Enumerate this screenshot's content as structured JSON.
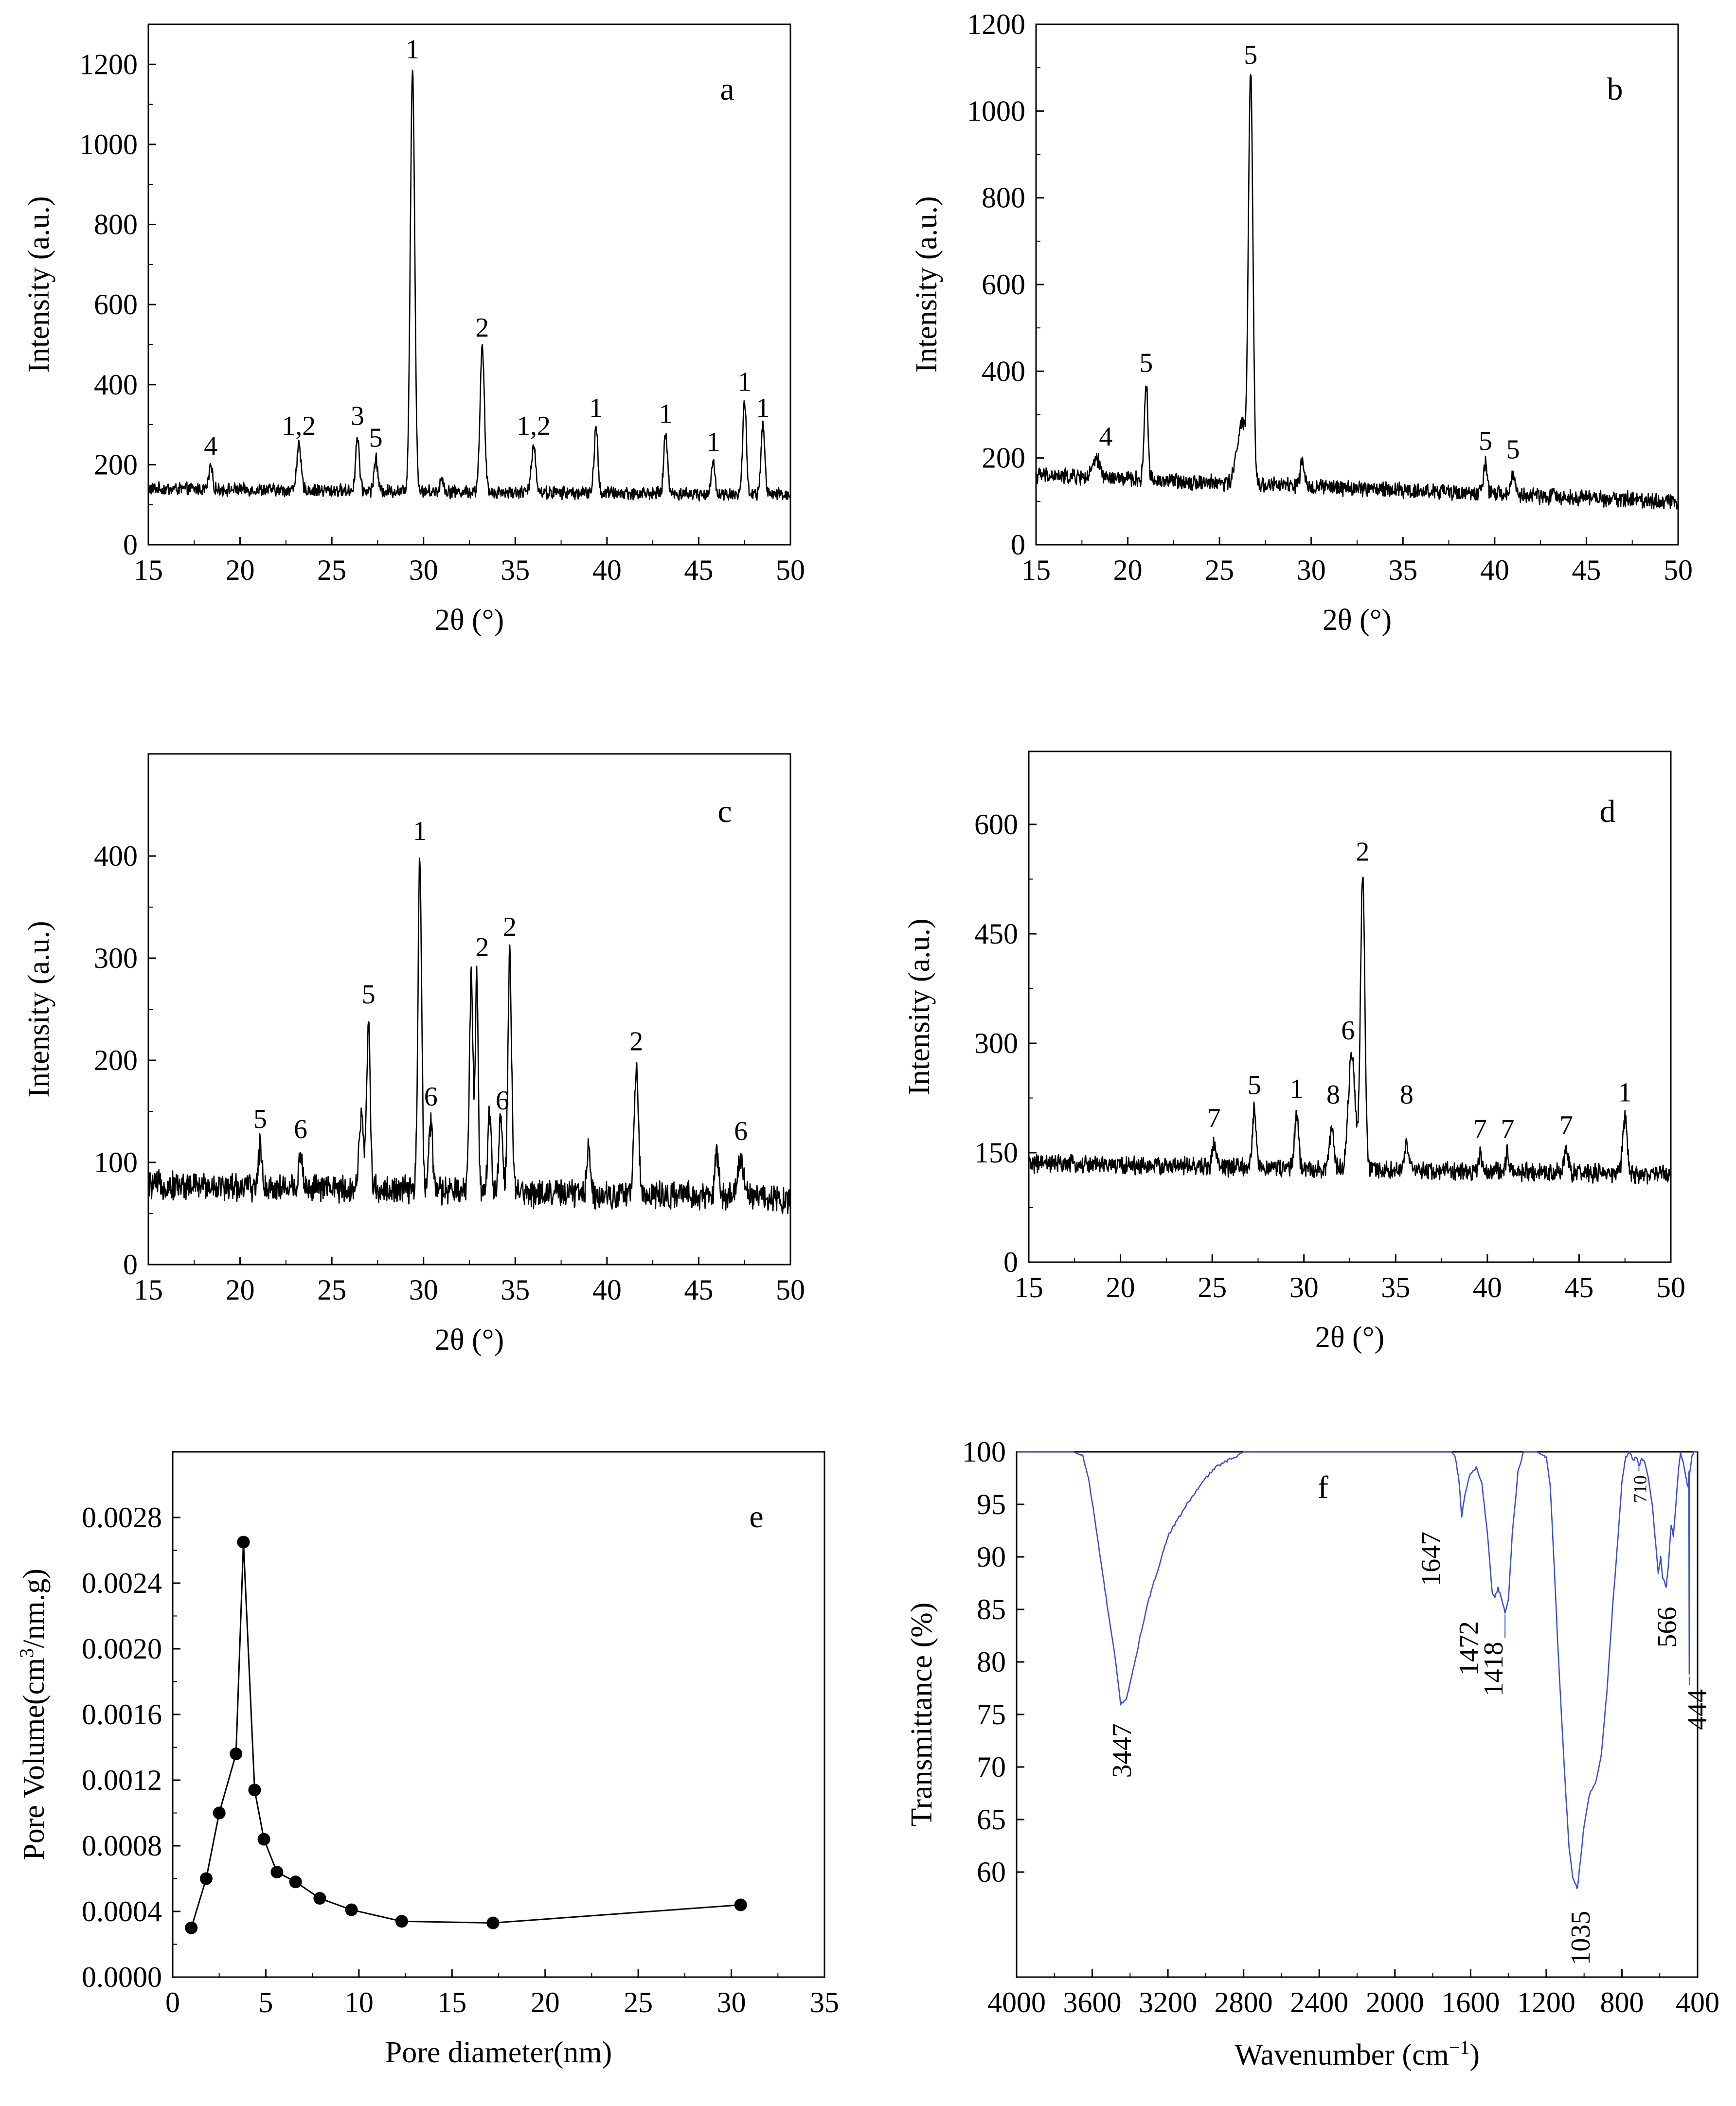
{
  "chart_data": [
    {
      "id": "a",
      "type": "line",
      "panel_label": "a",
      "xlabel": "2θ (°)",
      "ylabel": "Intensity (a.u.)",
      "xlim": [
        15,
        50
      ],
      "ylim": [
        0,
        1300
      ],
      "xticks": [
        15,
        20,
        25,
        30,
        35,
        40,
        45,
        50
      ],
      "yticks": [
        0,
        200,
        400,
        600,
        800,
        1000,
        1200
      ],
      "baseline": {
        "start": 140,
        "end": 125,
        "noise": 14
      },
      "peaks": [
        {
          "x": 18.4,
          "y": 195,
          "w": 0.1
        },
        {
          "x": 23.2,
          "y": 245,
          "w": 0.12
        },
        {
          "x": 26.4,
          "y": 270,
          "w": 0.1
        },
        {
          "x": 27.4,
          "y": 215,
          "w": 0.1
        },
        {
          "x": 29.4,
          "y": 1185,
          "w": 0.12
        },
        {
          "x": 31.0,
          "y": 165,
          "w": 0.1
        },
        {
          "x": 33.2,
          "y": 490,
          "w": 0.12
        },
        {
          "x": 36.0,
          "y": 250,
          "w": 0.12
        },
        {
          "x": 39.4,
          "y": 295,
          "w": 0.1
        },
        {
          "x": 43.2,
          "y": 280,
          "w": 0.1
        },
        {
          "x": 45.8,
          "y": 205,
          "w": 0.1
        },
        {
          "x": 47.5,
          "y": 360,
          "w": 0.1
        },
        {
          "x": 48.5,
          "y": 300,
          "w": 0.1
        }
      ],
      "labels": [
        {
          "text": "4",
          "x": 18.4,
          "y": 215
        },
        {
          "text": "1,2",
          "x": 23.2,
          "y": 265
        },
        {
          "text": "3",
          "x": 26.4,
          "y": 290
        },
        {
          "text": "5",
          "x": 27.4,
          "y": 235
        },
        {
          "text": "1",
          "x": 29.4,
          "y": 1205
        },
        {
          "text": "2",
          "x": 33.2,
          "y": 510
        },
        {
          "text": "1,2",
          "x": 36.0,
          "y": 265
        },
        {
          "text": "1",
          "x": 39.4,
          "y": 310
        },
        {
          "text": "1",
          "x": 43.2,
          "y": 295
        },
        {
          "text": "1",
          "x": 45.8,
          "y": 225
        },
        {
          "text": "1",
          "x": 47.5,
          "y": 375
        },
        {
          "text": "1",
          "x": 48.5,
          "y": 310
        }
      ]
    },
    {
      "id": "b",
      "type": "line",
      "panel_label": "b",
      "xlabel": "2θ (°)",
      "ylabel": "Intensity (a.u.)",
      "xlim": [
        15,
        50
      ],
      "ylim": [
        0,
        1200
      ],
      "xticks": [
        15,
        20,
        25,
        30,
        35,
        40,
        45,
        50
      ],
      "yticks": [
        0,
        200,
        400,
        600,
        800,
        1000,
        1200
      ],
      "baseline": {
        "start": 160,
        "end": 100,
        "noise": 16
      },
      "peaks": [
        {
          "x": 18.3,
          "y": 195,
          "w": 0.2
        },
        {
          "x": 21.0,
          "y": 370,
          "w": 0.1
        },
        {
          "x": 26.2,
          "y": 280,
          "w": 0.25
        },
        {
          "x": 26.7,
          "y": 1075,
          "w": 0.12
        },
        {
          "x": 29.5,
          "y": 190,
          "w": 0.1
        },
        {
          "x": 39.5,
          "y": 190,
          "w": 0.1
        },
        {
          "x": 41.0,
          "y": 165,
          "w": 0.1
        }
      ],
      "labels": [
        {
          "text": "4",
          "x": 18.8,
          "y": 220
        },
        {
          "text": "5",
          "x": 21.0,
          "y": 390
        },
        {
          "text": "5",
          "x": 26.7,
          "y": 1100
        },
        {
          "text": "5",
          "x": 39.5,
          "y": 210
        },
        {
          "text": "5",
          "x": 41.0,
          "y": 190
        }
      ]
    },
    {
      "id": "c",
      "type": "line",
      "panel_label": "c",
      "xlabel": "2θ (°)",
      "ylabel": "Intensity (a.u.)",
      "xlim": [
        15,
        50
      ],
      "ylim": [
        0,
        500
      ],
      "xticks": [
        15,
        20,
        25,
        30,
        35,
        40,
        45,
        50
      ],
      "yticks": [
        0,
        100,
        200,
        300,
        400
      ],
      "baseline": {
        "start": 78,
        "end": 65,
        "noise": 12
      },
      "peaks": [
        {
          "x": 21.1,
          "y": 115,
          "w": 0.1
        },
        {
          "x": 23.3,
          "y": 110,
          "w": 0.1
        },
        {
          "x": 26.6,
          "y": 145,
          "w": 0.12
        },
        {
          "x": 27.0,
          "y": 235,
          "w": 0.1
        },
        {
          "x": 29.8,
          "y": 398,
          "w": 0.1
        },
        {
          "x": 30.4,
          "y": 138,
          "w": 0.1
        },
        {
          "x": 32.6,
          "y": 280,
          "w": 0.1
        },
        {
          "x": 32.9,
          "y": 282,
          "w": 0.08
        },
        {
          "x": 33.6,
          "y": 148,
          "w": 0.1
        },
        {
          "x": 34.2,
          "y": 145,
          "w": 0.1
        },
        {
          "x": 34.7,
          "y": 302,
          "w": 0.1
        },
        {
          "x": 39.0,
          "y": 115,
          "w": 0.1
        },
        {
          "x": 41.6,
          "y": 190,
          "w": 0.12
        },
        {
          "x": 46.0,
          "y": 110,
          "w": 0.1
        },
        {
          "x": 47.3,
          "y": 108,
          "w": 0.15
        }
      ],
      "labels": [
        {
          "text": "5",
          "x": 21.1,
          "y": 130
        },
        {
          "text": "6",
          "x": 23.3,
          "y": 120
        },
        {
          "text": "5",
          "x": 27.0,
          "y": 252
        },
        {
          "text": "1",
          "x": 29.8,
          "y": 412
        },
        {
          "text": "6",
          "x": 30.4,
          "y": 152
        },
        {
          "text": "2",
          "x": 33.2,
          "y": 298
        },
        {
          "text": "6",
          "x": 34.3,
          "y": 148
        },
        {
          "text": "2",
          "x": 34.7,
          "y": 318
        },
        {
          "text": "2",
          "x": 41.6,
          "y": 206
        },
        {
          "text": "6",
          "x": 47.3,
          "y": 118
        }
      ]
    },
    {
      "id": "d",
      "type": "line",
      "panel_label": "d",
      "xlabel": "2θ (°)",
      "ylabel": "Intensity (a.u.)",
      "xlim": [
        15,
        50
      ],
      "ylim": [
        0,
        700
      ],
      "xticks": [
        15,
        20,
        25,
        30,
        35,
        40,
        45,
        50
      ],
      "yticks": [
        0,
        150,
        300,
        450,
        600
      ],
      "baseline": {
        "start": 135,
        "end": 120,
        "noise": 11
      },
      "peaks": [
        {
          "x": 25.1,
          "y": 165,
          "w": 0.1
        },
        {
          "x": 27.3,
          "y": 210,
          "w": 0.1
        },
        {
          "x": 29.6,
          "y": 205,
          "w": 0.1
        },
        {
          "x": 31.5,
          "y": 180,
          "w": 0.12
        },
        {
          "x": 32.6,
          "y": 285,
          "w": 0.18
        },
        {
          "x": 33.2,
          "y": 530,
          "w": 0.12
        },
        {
          "x": 35.6,
          "y": 160,
          "w": 0.1
        },
        {
          "x": 39.6,
          "y": 145,
          "w": 0.1
        },
        {
          "x": 41.1,
          "y": 150,
          "w": 0.1
        },
        {
          "x": 44.3,
          "y": 155,
          "w": 0.12
        },
        {
          "x": 47.5,
          "y": 195,
          "w": 0.12
        }
      ],
      "labels": [
        {
          "text": "7",
          "x": 25.1,
          "y": 180
        },
        {
          "text": "5",
          "x": 27.3,
          "y": 225
        },
        {
          "text": "1",
          "x": 29.6,
          "y": 220
        },
        {
          "text": "8",
          "x": 31.6,
          "y": 212
        },
        {
          "text": "6",
          "x": 32.4,
          "y": 300
        },
        {
          "text": "2",
          "x": 33.2,
          "y": 545
        },
        {
          "text": "8",
          "x": 35.6,
          "y": 212
        },
        {
          "text": "7",
          "x": 39.6,
          "y": 165
        },
        {
          "text": "7",
          "x": 41.1,
          "y": 165
        },
        {
          "text": "7",
          "x": 44.3,
          "y": 170
        },
        {
          "text": "1",
          "x": 47.5,
          "y": 215
        }
      ]
    },
    {
      "id": "e",
      "type": "scatter",
      "panel_label": "e",
      "xlabel": "Pore diameter(nm)",
      "ylabel": "Pore Volume(cm",
      "ylabel_sup": "3",
      "ylabel_tail": "/nm.g)",
      "xlim": [
        0,
        35
      ],
      "ylim": [
        0,
        0.0032
      ],
      "xticks": [
        0,
        5,
        10,
        15,
        20,
        25,
        30,
        35
      ],
      "yticks": [
        "0.0000",
        "0.0004",
        "0.0008",
        "0.0012",
        "0.0016",
        "0.0020",
        "0.0024",
        "0.0028"
      ],
      "x": [
        1.0,
        1.8,
        2.5,
        3.4,
        3.8,
        4.4,
        4.9,
        5.6,
        6.6,
        7.9,
        9.6,
        12.3,
        17.2,
        30.5
      ],
      "y": [
        0.0003,
        0.0006,
        0.001,
        0.00136,
        0.00265,
        0.00114,
        0.00084,
        0.00064,
        0.00058,
        0.00048,
        0.00041,
        0.00034,
        0.00033,
        0.00044
      ]
    },
    {
      "id": "f",
      "type": "line",
      "panel_label": "f",
      "xlabel": "Wavenumber (cm",
      "xlabel_sup": "−1",
      "xlabel_tail": ")",
      "ylabel": "Transmittance (%)",
      "xlim": [
        4000,
        400
      ],
      "ylim": [
        50,
        100
      ],
      "ylim_note": "y axis drawn 100 at top down to 50",
      "xticks": [
        4000,
        3600,
        3200,
        2800,
        2400,
        2000,
        1600,
        1200,
        800,
        400
      ],
      "yticks": [
        60,
        65,
        70,
        75,
        80,
        85,
        90,
        95,
        100
      ],
      "color": "#3a4fd4",
      "curve": [
        [
          4000,
          100
        ],
        [
          3700,
          100
        ],
        [
          3650,
          99.6
        ],
        [
          3620,
          97.5
        ],
        [
          3590,
          94
        ],
        [
          3550,
          89
        ],
        [
          3510,
          84
        ],
        [
          3480,
          80.5
        ],
        [
          3450,
          76
        ],
        [
          3420,
          76.5
        ],
        [
          3380,
          79.5
        ],
        [
          3340,
          83
        ],
        [
          3300,
          86
        ],
        [
          3250,
          89
        ],
        [
          3200,
          92
        ],
        [
          3100,
          95
        ],
        [
          3000,
          97.5
        ],
        [
          2950,
          98.5
        ],
        [
          2900,
          99
        ],
        [
          2800,
          100
        ],
        [
          2000,
          100
        ],
        [
          1700,
          100
        ],
        [
          1680,
          99.5
        ],
        [
          1660,
          97
        ],
        [
          1647,
          93.8
        ],
        [
          1630,
          96
        ],
        [
          1600,
          98
        ],
        [
          1570,
          98.5
        ],
        [
          1540,
          97
        ],
        [
          1510,
          92
        ],
        [
          1485,
          86.5
        ],
        [
          1472,
          86.2
        ],
        [
          1455,
          87
        ],
        [
          1435,
          86
        ],
        [
          1418,
          84.7
        ],
        [
          1400,
          86
        ],
        [
          1380,
          92
        ],
        [
          1350,
          98
        ],
        [
          1320,
          100
        ],
        [
          1250,
          100
        ],
        [
          1200,
          99.5
        ],
        [
          1180,
          97
        ],
        [
          1160,
          90
        ],
        [
          1140,
          82
        ],
        [
          1120,
          75
        ],
        [
          1100,
          68.5
        ],
        [
          1080,
          62.5
        ],
        [
          1060,
          59.5
        ],
        [
          1040,
          58.6
        ],
        [
          1035,
          58.4
        ],
        [
          1020,
          61
        ],
        [
          1000,
          64.5
        ],
        [
          970,
          67.5
        ],
        [
          940,
          68.5
        ],
        [
          910,
          71
        ],
        [
          880,
          77
        ],
        [
          850,
          85
        ],
        [
          820,
          92
        ],
        [
          800,
          97
        ],
        [
          780,
          99.5
        ],
        [
          760,
          100
        ],
        [
          740,
          99.2
        ],
        [
          725,
          99.6
        ],
        [
          710,
          98.7
        ],
        [
          695,
          99.3
        ],
        [
          680,
          99
        ],
        [
          660,
          97.5
        ],
        [
          640,
          95
        ],
        [
          620,
          91
        ],
        [
          608,
          88.5
        ],
        [
          595,
          90
        ],
        [
          585,
          88
        ],
        [
          575,
          87.6
        ],
        [
          566,
          87.1
        ],
        [
          555,
          89
        ],
        [
          540,
          93
        ],
        [
          528,
          92
        ],
        [
          515,
          95
        ],
        [
          500,
          98.5
        ],
        [
          490,
          99.9
        ],
        [
          475,
          99
        ],
        [
          462,
          97.5
        ],
        [
          455,
          97
        ],
        [
          448,
          96.5
        ],
        [
          446,
          98
        ],
        [
          444,
          78.8
        ],
        [
          442,
          98
        ],
        [
          430,
          99.5
        ],
        [
          420,
          100
        ],
        [
          400,
          100
        ]
      ],
      "annotations": [
        {
          "text": "3447",
          "x": 3447,
          "y": 76,
          "size": "normal"
        },
        {
          "text": "1647",
          "x": 1647,
          "y": 93.8,
          "size": "normal"
        },
        {
          "text": "1472",
          "x": 1472,
          "y": 86.2,
          "size": "normal"
        },
        {
          "text": "1418",
          "x": 1418,
          "y": 84.7,
          "size": "normal"
        },
        {
          "text": "1035",
          "x": 1035,
          "y": 58.4,
          "size": "normal"
        },
        {
          "text": "710",
          "x": 710,
          "y": 98.7,
          "size": "small"
        },
        {
          "text": "566",
          "x": 566,
          "y": 87.1,
          "size": "normal"
        },
        {
          "text": "444",
          "x": 444,
          "y": 78.8,
          "size": "normal"
        }
      ]
    }
  ]
}
